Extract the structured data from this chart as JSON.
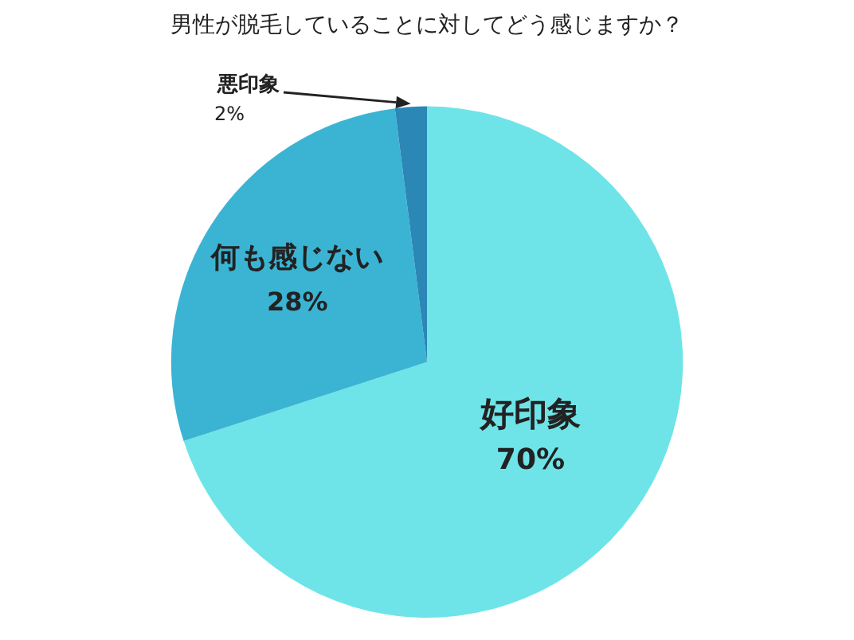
{
  "chart_data": {
    "type": "pie",
    "title": "男性が脱毛していることに対してどう感じますか？",
    "categories": [
      "好印象",
      "何も感じない",
      "悪印象"
    ],
    "values": [
      70,
      28,
      2
    ],
    "colors": [
      "#6ee4e8",
      "#3bb4d4",
      "#2a87b6"
    ],
    "value_labels": [
      "70%",
      "28%",
      "2%"
    ],
    "legend": false
  }
}
